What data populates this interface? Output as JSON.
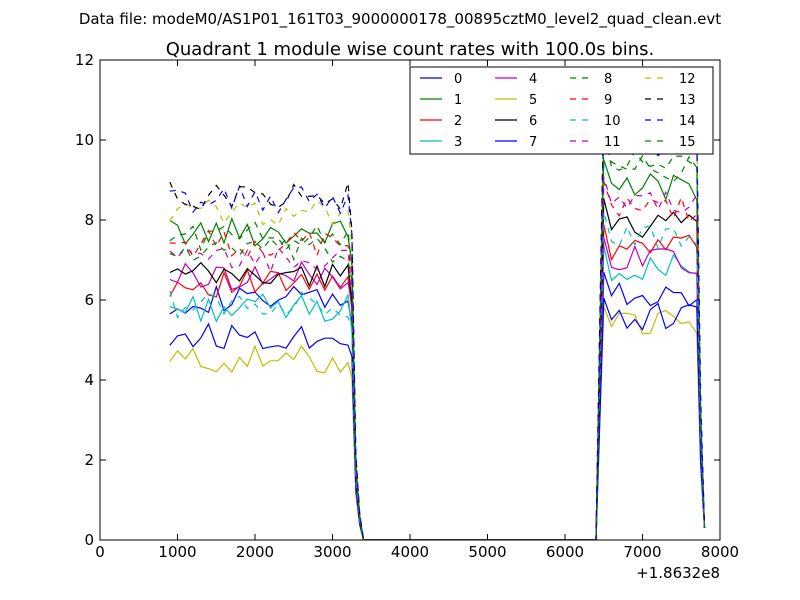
{
  "suptitle": "Data file: modeM0/AS1P01_161T03_9000000178_00895cztM0_level2_quad_clean.evt",
  "chart_data": {
    "type": "line",
    "title": "Quadrant 1 module wise count rates with 100.0s bins.",
    "xlabel": "",
    "ylabel": "",
    "x_offset_label": "+1.8632e8",
    "xlim": [
      0,
      8000
    ],
    "ylim": [
      0,
      12
    ],
    "xticks": [
      0,
      1000,
      2000,
      3000,
      4000,
      5000,
      6000,
      7000,
      8000
    ],
    "yticks": [
      0,
      2,
      4,
      6,
      8,
      10,
      12
    ],
    "legend_position": "top-right",
    "legend_columns": 4,
    "segment1_x": [
      900,
      1000,
      1100,
      1200,
      1300,
      1400,
      1500,
      1600,
      1700,
      1800,
      1900,
      2000,
      2100,
      2200,
      2300,
      2400,
      2500,
      2600,
      2700,
      2800,
      2900,
      3000,
      3100,
      3200
    ],
    "tail1_x": [
      3250,
      3300,
      3350,
      3400
    ],
    "zero_x": [
      3400,
      6400
    ],
    "segment2_x": [
      6400,
      6450,
      6500,
      6600,
      6700,
      6800,
      6900,
      7000,
      7100,
      7200,
      7300,
      7400,
      7500,
      7600,
      7700,
      7750,
      7800
    ],
    "series": [
      {
        "name": "0",
        "color": "#0000ff",
        "dashed": false,
        "level1": 6.0,
        "level2": 6.2
      },
      {
        "name": "1",
        "color": "#008000",
        "dashed": false,
        "level1": 7.7,
        "level2": 8.8
      },
      {
        "name": "2",
        "color": "#ff0000",
        "dashed": false,
        "level1": 6.4,
        "level2": 7.3
      },
      {
        "name": "3",
        "color": "#00bfbf",
        "dashed": false,
        "level1": 5.8,
        "level2": 6.8
      },
      {
        "name": "4",
        "color": "#bf00bf",
        "dashed": false,
        "level1": 6.6,
        "level2": 7.0
      },
      {
        "name": "5",
        "color": "#bfbf00",
        "dashed": false,
        "level1": 4.5,
        "level2": 5.4
      },
      {
        "name": "6",
        "color": "#000000",
        "dashed": false,
        "level1": 6.6,
        "level2": 7.9
      },
      {
        "name": "7",
        "color": "#0000ff",
        "dashed": false,
        "level1": 5.1,
        "level2": 5.6
      },
      {
        "name": "8",
        "color": "#008000",
        "dashed": true,
        "level1": 7.6,
        "level2": 9.4
      },
      {
        "name": "9",
        "color": "#ff0000",
        "dashed": true,
        "level1": 7.4,
        "level2": 8.3
      },
      {
        "name": "10",
        "color": "#00bfbf",
        "dashed": true,
        "level1": 5.9,
        "level2": 7.6
      },
      {
        "name": "11",
        "color": "#bf00bf",
        "dashed": true,
        "level1": 7.0,
        "level2": 8.4
      },
      {
        "name": "12",
        "color": "#bfbf00",
        "dashed": true,
        "level1": 8.2,
        "level2": 10.0
      },
      {
        "name": "13",
        "color": "#000000",
        "dashed": true,
        "level1": 8.6,
        "level2": 10.3
      },
      {
        "name": "14",
        "color": "#0000ff",
        "dashed": true,
        "level1": 8.5,
        "level2": 9.9
      },
      {
        "name": "15",
        "color": "#008000",
        "dashed": true,
        "level1": 7.2,
        "level2": 9.3
      }
    ]
  }
}
